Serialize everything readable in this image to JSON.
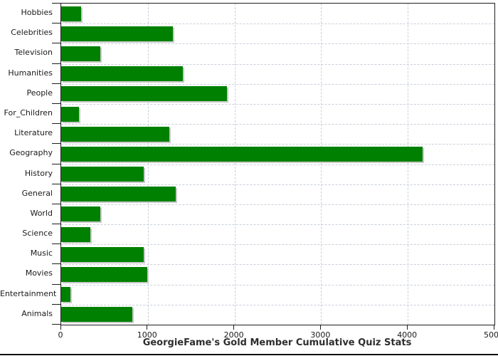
{
  "chart_data": {
    "type": "bar",
    "orientation": "horizontal",
    "title": "GeorgieFame's Gold Member Cumulative Quiz Stats",
    "categories": [
      "Hobbies",
      "Celebrities",
      "Television",
      "Humanities",
      "People",
      "For_Children",
      "Literature",
      "Geography",
      "History",
      "General",
      "World",
      "Science",
      "Music",
      "Movies",
      "Entertainment",
      "Animals"
    ],
    "values": [
      230,
      1285,
      455,
      1400,
      1910,
      205,
      1250,
      4170,
      950,
      1325,
      455,
      340,
      950,
      990,
      105,
      825
    ],
    "xlabel": "",
    "ylabel": "",
    "xlim": [
      0,
      5000
    ],
    "x_ticks": [
      0,
      1000,
      2000,
      3000,
      4000,
      5000
    ],
    "x_tick_labels": [
      "0",
      "1000",
      "2000",
      "3000",
      "4000",
      "5000"
    ],
    "grid": "on-dashed",
    "legend": "none",
    "colors": {
      "bar": "#008000",
      "bar_shadow": "#c9c9c9",
      "gridline": "#c9cfda",
      "axis": "#1d1d1d",
      "text": "#1a1a1a",
      "title_text": "#2e2e2e",
      "background": "#ffffff"
    }
  }
}
